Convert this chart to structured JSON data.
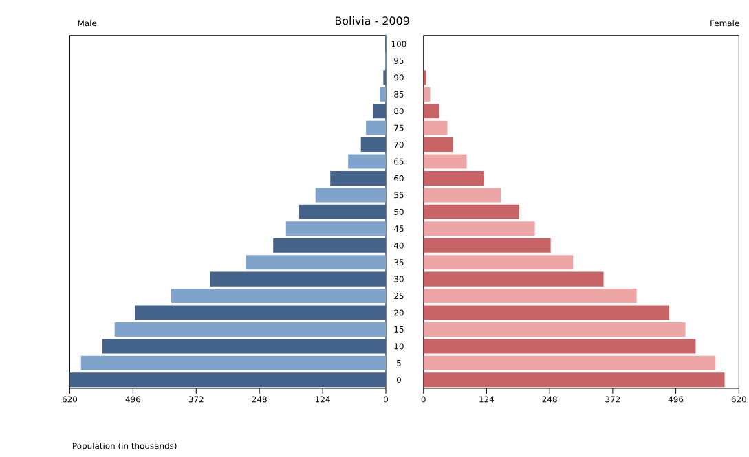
{
  "chart_data": [
    {
      "type": "bar",
      "orientation": "horizontal",
      "title": "Bolivia - 2009",
      "subtitle": "Male",
      "xlabel": "Population (in thousands)",
      "categories": [
        "100",
        "95",
        "90",
        "85",
        "80",
        "75",
        "70",
        "65",
        "60",
        "55",
        "50",
        "45",
        "40",
        "35",
        "30",
        "25",
        "20",
        "15",
        "10",
        "5",
        "0"
      ],
      "values": [
        1,
        1,
        5,
        12,
        25,
        39,
        49,
        74,
        109,
        138,
        170,
        196,
        221,
        274,
        345,
        421,
        492,
        532,
        556,
        598,
        620
      ],
      "colors": [
        "#44638a",
        "#7fa3cb",
        "#44638a",
        "#7fa3cb",
        "#44638a",
        "#7fa3cb",
        "#44638a",
        "#7fa3cb",
        "#44638a",
        "#7fa3cb",
        "#44638a",
        "#7fa3cb",
        "#44638a",
        "#7fa3cb",
        "#44638a",
        "#7fa3cb",
        "#44638a",
        "#7fa3cb",
        "#44638a",
        "#7fa3cb",
        "#44638a"
      ],
      "xlim": [
        620,
        0
      ],
      "xticks": [
        620,
        496,
        372,
        248,
        124,
        0
      ],
      "tick_labels": "x"
    },
    {
      "type": "bar",
      "orientation": "horizontal",
      "subtitle": "Female",
      "categories": [
        "100",
        "95",
        "90",
        "85",
        "80",
        "75",
        "70",
        "65",
        "60",
        "55",
        "50",
        "45",
        "40",
        "35",
        "30",
        "25",
        "20",
        "15",
        "10",
        "5",
        "0"
      ],
      "values": [
        null,
        null,
        5,
        13,
        31,
        47,
        58,
        85,
        119,
        152,
        188,
        219,
        250,
        294,
        354,
        419,
        483,
        515,
        535,
        574,
        592
      ],
      "colors": [
        "#c96466",
        "#eea5a6",
        "#c96466",
        "#eea5a6",
        "#c96466",
        "#eea5a6",
        "#c96466",
        "#eea5a6",
        "#c96466",
        "#eea5a6",
        "#c96466",
        "#eea5a6",
        "#c96466",
        "#eea5a6",
        "#c96466",
        "#eea5a6",
        "#c96466",
        "#eea5a6",
        "#c96466",
        "#eea5a6",
        "#c96466"
      ],
      "xlim": [
        0,
        620
      ],
      "xticks": [
        0,
        124,
        248,
        372,
        496,
        620
      ]
    }
  ]
}
